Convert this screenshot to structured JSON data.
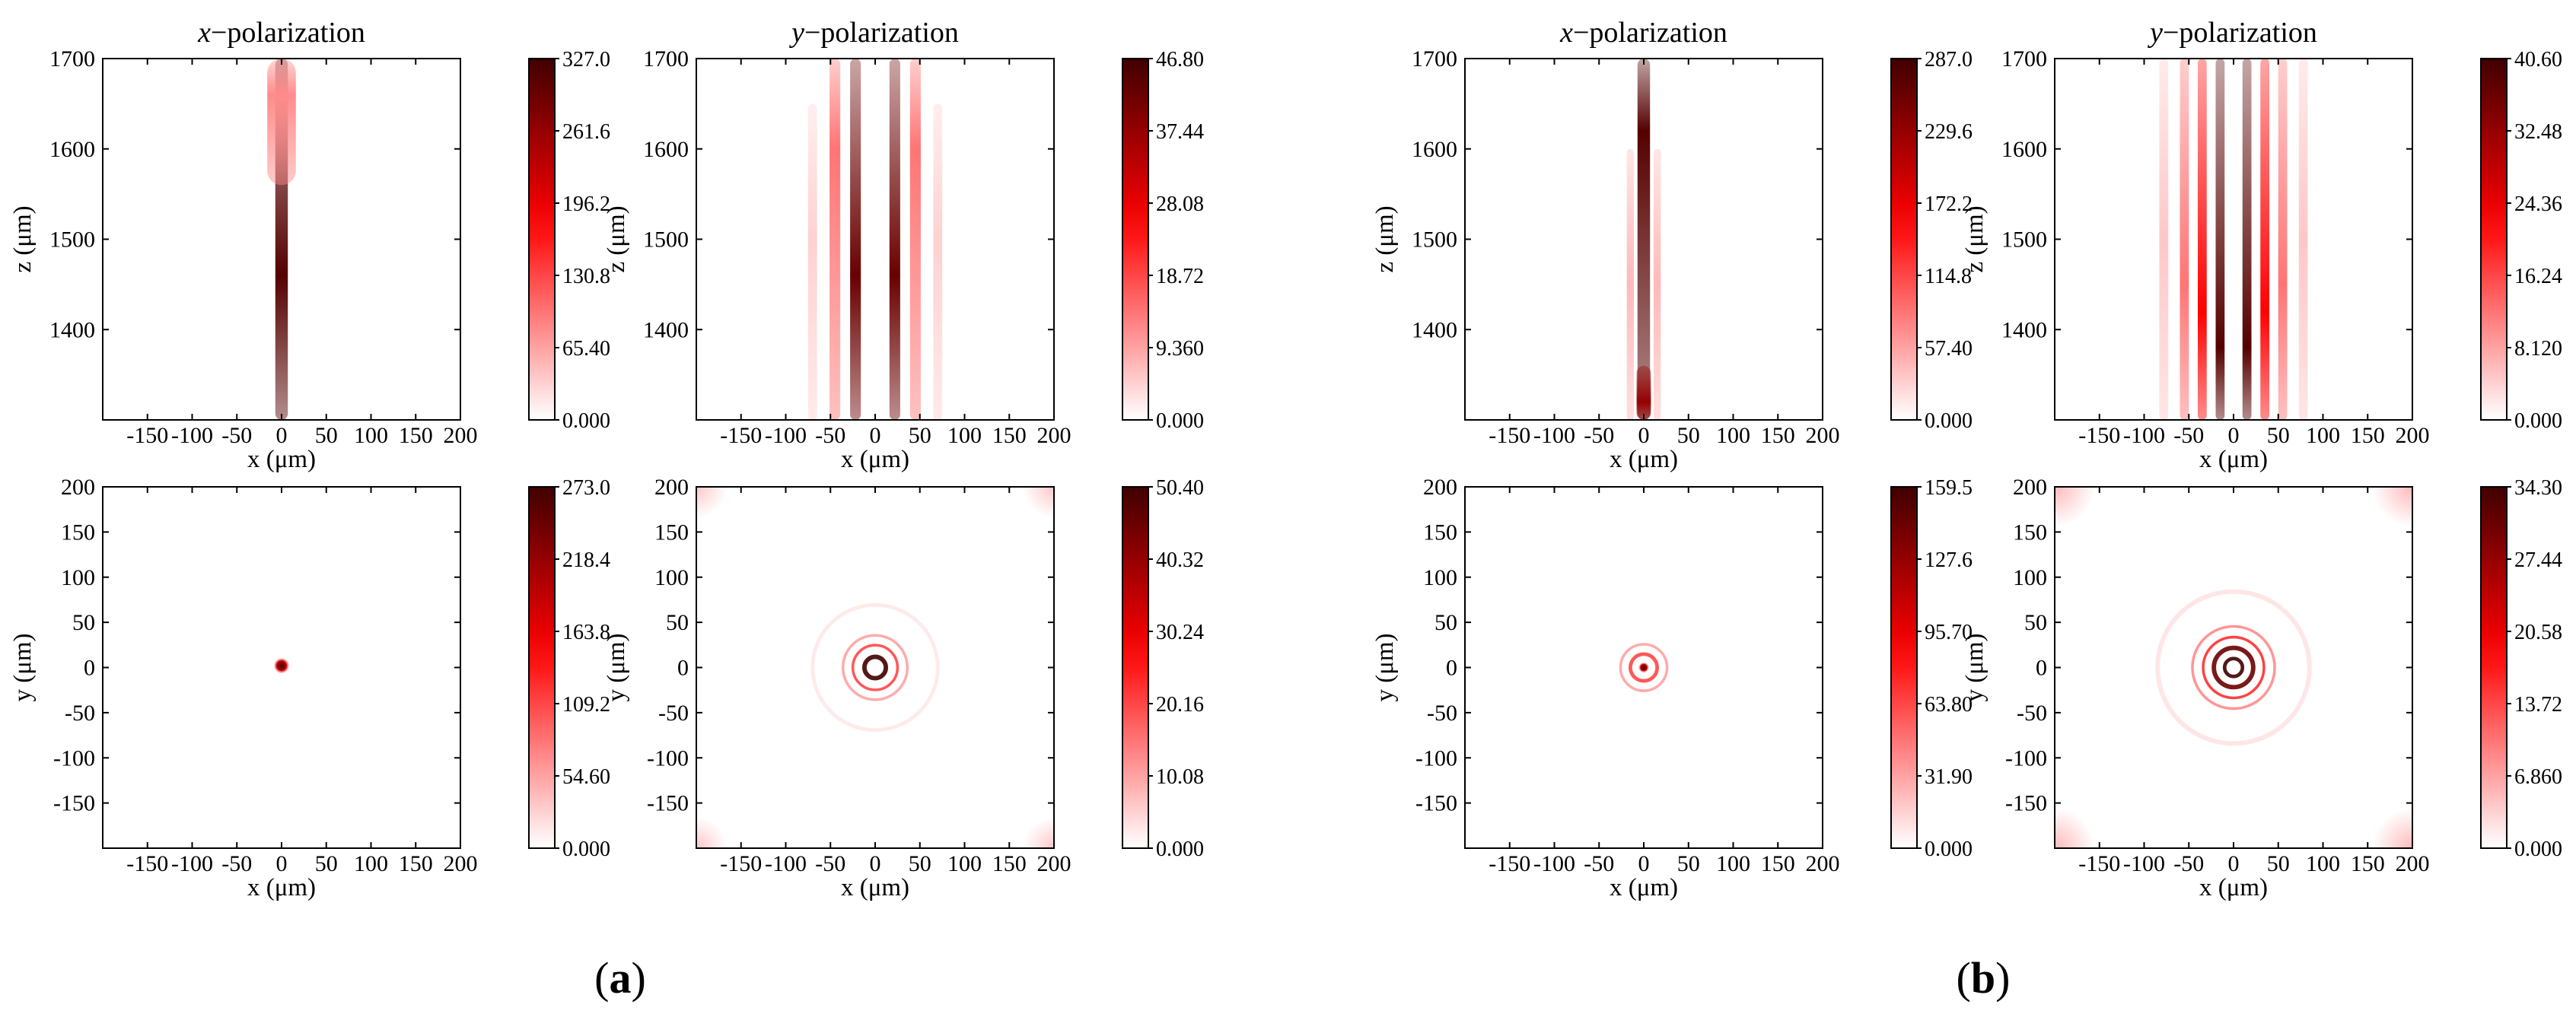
{
  "figure_captions": {
    "a": {
      "open": "(",
      "letter": "a",
      "close": ")"
    },
    "b": {
      "open": "(",
      "letter": "b",
      "close": ")"
    }
  },
  "colors": {
    "low": "#ffffff",
    "mid": "#ff0000",
    "high": "#400000",
    "axis": "#000000"
  },
  "chart_data": [
    {
      "id": "a-xz-x",
      "group": "a",
      "type": "heatmap",
      "title_italic": "x",
      "title_rest": "−polarization",
      "xlabel": "x (μm)",
      "ylabel": "z (μm)",
      "xlim": [
        -200,
        200
      ],
      "ylim": [
        1300,
        1700
      ],
      "xticks": [
        "-150",
        "-100",
        "-50",
        "0",
        "50",
        "100",
        "150",
        "200"
      ],
      "yticks": [
        "1400",
        "1500",
        "1600",
        "1700"
      ],
      "colorbar": [
        "0.000",
        "65.40",
        "130.8",
        "196.2",
        "261.6",
        "327.0"
      ],
      "vmax": 327.0,
      "features": [
        {
          "kind": "beam",
          "x": 0,
          "z_from": 1300,
          "z_to": 1700,
          "peak_z": 1460,
          "width": 7,
          "intensity": 0.95
        },
        {
          "kind": "beam",
          "x": 0,
          "z_from": 1560,
          "z_to": 1700,
          "peak_z": 1660,
          "width": 16,
          "intensity": 0.25
        }
      ]
    },
    {
      "id": "a-xz-y",
      "group": "a",
      "type": "heatmap",
      "title_italic": "y",
      "title_rest": "−polarization",
      "xlabel": "x (μm)",
      "ylabel": "z (μm)",
      "xlim": [
        -200,
        200
      ],
      "ylim": [
        1300,
        1700
      ],
      "xticks": [
        "-150",
        "-100",
        "-50",
        "0",
        "50",
        "100",
        "150",
        "200"
      ],
      "yticks": [
        "1400",
        "1500",
        "1600",
        "1700"
      ],
      "colorbar": [
        "0.000",
        "9.360",
        "18.72",
        "28.08",
        "37.44",
        "46.80"
      ],
      "vmax": 46.8,
      "features": [
        {
          "kind": "beam",
          "x": -22,
          "z_from": 1300,
          "z_to": 1700,
          "peak_z": 1460,
          "width": 6,
          "intensity": 0.9
        },
        {
          "kind": "beam",
          "x": 22,
          "z_from": 1300,
          "z_to": 1700,
          "peak_z": 1460,
          "width": 6,
          "intensity": 0.9
        },
        {
          "kind": "beam",
          "x": -45,
          "z_from": 1300,
          "z_to": 1700,
          "peak_z": 1600,
          "width": 6,
          "intensity": 0.3
        },
        {
          "kind": "beam",
          "x": 45,
          "z_from": 1300,
          "z_to": 1700,
          "peak_z": 1600,
          "width": 6,
          "intensity": 0.3
        },
        {
          "kind": "beam",
          "x": -70,
          "z_from": 1300,
          "z_to": 1650,
          "peak_z": 1500,
          "width": 5,
          "intensity": 0.1
        },
        {
          "kind": "beam",
          "x": 70,
          "z_from": 1300,
          "z_to": 1650,
          "peak_z": 1500,
          "width": 5,
          "intensity": 0.1
        }
      ]
    },
    {
      "id": "a-xy-x",
      "group": "a",
      "type": "heatmap",
      "xlabel": "x (μm)",
      "ylabel": "y (μm)",
      "xlim": [
        -200,
        200
      ],
      "ylim": [
        -200,
        200
      ],
      "xticks": [
        "-150",
        "-100",
        "-50",
        "0",
        "50",
        "100",
        "150",
        "200"
      ],
      "yticks": [
        "-150",
        "-100",
        "-50",
        "0",
        "50",
        "100",
        "150",
        "200"
      ],
      "colorbar": [
        "0.000",
        "54.60",
        "109.2",
        "163.8",
        "218.4",
        "273.0"
      ],
      "vmax": 273.0,
      "features": [
        {
          "kind": "spot",
          "x": 0,
          "y": 2,
          "r": 9,
          "intensity": 1.0
        }
      ]
    },
    {
      "id": "a-xy-y",
      "group": "a",
      "type": "heatmap",
      "xlabel": "x (μm)",
      "ylabel": "y (μm)",
      "xlim": [
        -200,
        200
      ],
      "ylim": [
        -200,
        200
      ],
      "xticks": [
        "-150",
        "-100",
        "-50",
        "0",
        "50",
        "100",
        "150",
        "200"
      ],
      "yticks": [
        "-150",
        "-100",
        "-50",
        "0",
        "50",
        "100",
        "150",
        "200"
      ],
      "colorbar": [
        "0.000",
        "10.08",
        "20.16",
        "30.24",
        "40.32",
        "50.40"
      ],
      "vmax": 50.4,
      "features": [
        {
          "kind": "ring",
          "x": 0,
          "y": 0,
          "r": 12,
          "w": 5,
          "intensity": 1.0
        },
        {
          "kind": "ring",
          "x": 0,
          "y": 0,
          "r": 25,
          "w": 3,
          "intensity": 0.4
        },
        {
          "kind": "ring",
          "x": 0,
          "y": 0,
          "r": 36,
          "w": 3,
          "intensity": 0.2
        },
        {
          "kind": "ring",
          "x": 0,
          "y": 0,
          "r": 70,
          "w": 4,
          "intensity": 0.05
        },
        {
          "kind": "corner",
          "x": -200,
          "y": 200,
          "r": 35,
          "intensity": 0.12
        },
        {
          "kind": "corner",
          "x": 200,
          "y": 200,
          "r": 35,
          "intensity": 0.12
        },
        {
          "kind": "corner",
          "x": -200,
          "y": -200,
          "r": 35,
          "intensity": 0.12
        },
        {
          "kind": "corner",
          "x": 200,
          "y": -200,
          "r": 35,
          "intensity": 0.12
        }
      ]
    },
    {
      "id": "b-xz-x",
      "group": "b",
      "type": "heatmap",
      "title_italic": "x",
      "title_rest": "−polarization",
      "xlabel": "x (μm)",
      "ylabel": "z (μm)",
      "xlim": [
        -200,
        200
      ],
      "ylim": [
        1300,
        1700
      ],
      "xticks": [
        "-150",
        "-100",
        "-50",
        "0",
        "50",
        "100",
        "150",
        "200"
      ],
      "yticks": [
        "1400",
        "1500",
        "1600",
        "1700"
      ],
      "colorbar": [
        "0.000",
        "57.40",
        "114.8",
        "172.2",
        "229.6",
        "287.0"
      ],
      "vmax": 287.0,
      "features": [
        {
          "kind": "beam",
          "x": 0,
          "z_from": 1300,
          "z_to": 1700,
          "peak_z": 1620,
          "width": 7,
          "intensity": 0.95
        },
        {
          "kind": "beam",
          "x": 0,
          "z_from": 1300,
          "z_to": 1360,
          "peak_z": 1320,
          "width": 8,
          "intensity": 0.8
        },
        {
          "kind": "beam",
          "x": -15,
          "z_from": 1300,
          "z_to": 1600,
          "peak_z": 1450,
          "width": 4,
          "intensity": 0.15
        },
        {
          "kind": "beam",
          "x": 15,
          "z_from": 1300,
          "z_to": 1600,
          "peak_z": 1450,
          "width": 4,
          "intensity": 0.15
        }
      ]
    },
    {
      "id": "b-xz-y",
      "group": "b",
      "type": "heatmap",
      "title_italic": "y",
      "title_rest": "−polarization",
      "xlabel": "x (μm)",
      "ylabel": "z (μm)",
      "xlim": [
        -200,
        200
      ],
      "ylim": [
        1300,
        1700
      ],
      "xticks": [
        "-150",
        "-100",
        "-50",
        "0",
        "50",
        "100",
        "150",
        "200"
      ],
      "yticks": [
        "1400",
        "1500",
        "1600",
        "1700"
      ],
      "colorbar": [
        "0.000",
        "8.120",
        "16.24",
        "24.36",
        "32.48",
        "40.60"
      ],
      "vmax": 40.6,
      "features": [
        {
          "kind": "beam",
          "x": -15,
          "z_from": 1300,
          "z_to": 1700,
          "peak_z": 1380,
          "width": 5,
          "intensity": 0.95
        },
        {
          "kind": "beam",
          "x": 15,
          "z_from": 1300,
          "z_to": 1700,
          "peak_z": 1380,
          "width": 5,
          "intensity": 0.95
        },
        {
          "kind": "beam",
          "x": -35,
          "z_from": 1300,
          "z_to": 1700,
          "peak_z": 1420,
          "width": 5,
          "intensity": 0.55
        },
        {
          "kind": "beam",
          "x": 35,
          "z_from": 1300,
          "z_to": 1700,
          "peak_z": 1420,
          "width": 5,
          "intensity": 0.55
        },
        {
          "kind": "beam",
          "x": -55,
          "z_from": 1300,
          "z_to": 1700,
          "peak_z": 1450,
          "width": 5,
          "intensity": 0.3
        },
        {
          "kind": "beam",
          "x": 55,
          "z_from": 1300,
          "z_to": 1700,
          "peak_z": 1450,
          "width": 5,
          "intensity": 0.3
        },
        {
          "kind": "beam",
          "x": -78,
          "z_from": 1300,
          "z_to": 1700,
          "peak_z": 1500,
          "width": 5,
          "intensity": 0.12
        },
        {
          "kind": "beam",
          "x": 78,
          "z_from": 1300,
          "z_to": 1700,
          "peak_z": 1500,
          "width": 5,
          "intensity": 0.12
        }
      ]
    },
    {
      "id": "b-xy-x",
      "group": "b",
      "type": "heatmap",
      "xlabel": "x (μm)",
      "ylabel": "y (μm)",
      "xlim": [
        -200,
        200
      ],
      "ylim": [
        -200,
        200
      ],
      "xticks": [
        "-150",
        "-100",
        "-50",
        "0",
        "50",
        "100",
        "150",
        "200"
      ],
      "yticks": [
        "-150",
        "-100",
        "-50",
        "0",
        "50",
        "100",
        "150",
        "200"
      ],
      "colorbar": [
        "0.000",
        "31.90",
        "63.80",
        "95.70",
        "127.6",
        "159.5"
      ],
      "vmax": 159.5,
      "features": [
        {
          "kind": "spot",
          "x": 0,
          "y": 0,
          "r": 6,
          "intensity": 1.0
        },
        {
          "kind": "ring",
          "x": 0,
          "y": 0,
          "r": 15,
          "w": 4,
          "intensity": 0.4
        },
        {
          "kind": "ring",
          "x": 0,
          "y": 0,
          "r": 26,
          "w": 3,
          "intensity": 0.2
        }
      ]
    },
    {
      "id": "b-xy-y",
      "group": "b",
      "type": "heatmap",
      "xlabel": "x (μm)",
      "ylabel": "y (μm)",
      "xlim": [
        -200,
        200
      ],
      "ylim": [
        -200,
        200
      ],
      "xticks": [
        "-150",
        "-100",
        "-50",
        "0",
        "50",
        "100",
        "150",
        "200"
      ],
      "yticks": [
        "-150",
        "-100",
        "-50",
        "0",
        "50",
        "100",
        "150",
        "200"
      ],
      "colorbar": [
        "0.000",
        "6.860",
        "13.72",
        "20.58",
        "27.44",
        "34.30"
      ],
      "vmax": 34.3,
      "features": [
        {
          "kind": "ring",
          "x": 0,
          "y": 0,
          "r": 10,
          "w": 4,
          "intensity": 1.0
        },
        {
          "kind": "ring",
          "x": 0,
          "y": 0,
          "r": 22,
          "w": 5,
          "intensity": 0.9
        },
        {
          "kind": "ring",
          "x": 0,
          "y": 0,
          "r": 34,
          "w": 3,
          "intensity": 0.45
        },
        {
          "kind": "ring",
          "x": 0,
          "y": 0,
          "r": 46,
          "w": 3,
          "intensity": 0.25
        },
        {
          "kind": "ring",
          "x": 0,
          "y": 0,
          "r": 85,
          "w": 5,
          "intensity": 0.06
        },
        {
          "kind": "corner",
          "x": -200,
          "y": 200,
          "r": 45,
          "intensity": 0.15
        },
        {
          "kind": "corner",
          "x": 200,
          "y": 200,
          "r": 45,
          "intensity": 0.15
        },
        {
          "kind": "corner",
          "x": -200,
          "y": -200,
          "r": 45,
          "intensity": 0.15
        },
        {
          "kind": "corner",
          "x": 200,
          "y": -200,
          "r": 45,
          "intensity": 0.15
        }
      ]
    }
  ]
}
